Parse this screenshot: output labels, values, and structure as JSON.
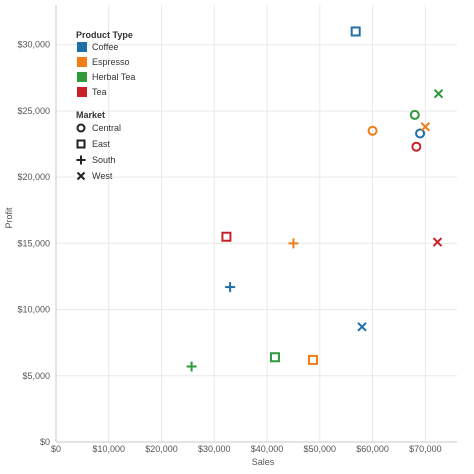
{
  "chart_data": {
    "type": "scatter",
    "xlabel": "Sales",
    "ylabel": "Profit",
    "xlim": [
      0,
      76000
    ],
    "ylim": [
      0,
      33000
    ],
    "x_ticks": [
      {
        "value": 0,
        "label": "$0"
      },
      {
        "value": 10000,
        "label": "$10,000"
      },
      {
        "value": 20000,
        "label": "$20,000"
      },
      {
        "value": 30000,
        "label": "$30,000"
      },
      {
        "value": 40000,
        "label": "$40,000"
      },
      {
        "value": 50000,
        "label": "$50,000"
      },
      {
        "value": 60000,
        "label": "$60,000"
      },
      {
        "value": 70000,
        "label": "$70,000"
      }
    ],
    "y_ticks": [
      {
        "value": 0,
        "label": "$0"
      },
      {
        "value": 5000,
        "label": "$5,000"
      },
      {
        "value": 10000,
        "label": "$10,000"
      },
      {
        "value": 15000,
        "label": "$15,000"
      },
      {
        "value": 20000,
        "label": "$20,000"
      },
      {
        "value": 25000,
        "label": "$25,000"
      },
      {
        "value": 30000,
        "label": "$30,000"
      }
    ],
    "grid": true,
    "legend_position": "top-left",
    "legend_color_title": "Product Type",
    "legend_shape_title": "Market",
    "product_types": [
      {
        "name": "Coffee",
        "color": "#1f6fa8"
      },
      {
        "name": "Espresso",
        "color": "#f07d1a"
      },
      {
        "name": "Herbal Tea",
        "color": "#2f9a3a"
      },
      {
        "name": "Tea",
        "color": "#c8202a"
      }
    ],
    "markets": [
      {
        "name": "Central",
        "shape": "circle"
      },
      {
        "name": "East",
        "shape": "square"
      },
      {
        "name": "South",
        "shape": "plus"
      },
      {
        "name": "West",
        "shape": "cross"
      }
    ],
    "points": [
      {
        "product": "Coffee",
        "market": "Central",
        "x": 69000,
        "y": 23300
      },
      {
        "product": "Coffee",
        "market": "East",
        "x": 56800,
        "y": 31000
      },
      {
        "product": "Coffee",
        "market": "South",
        "x": 33000,
        "y": 11700
      },
      {
        "product": "Coffee",
        "market": "West",
        "x": 58000,
        "y": 8700
      },
      {
        "product": "Espresso",
        "market": "Central",
        "x": 60000,
        "y": 23500
      },
      {
        "product": "Espresso",
        "market": "East",
        "x": 48700,
        "y": 6200
      },
      {
        "product": "Espresso",
        "market": "South",
        "x": 45000,
        "y": 15000
      },
      {
        "product": "Espresso",
        "market": "West",
        "x": 70000,
        "y": 23800
      },
      {
        "product": "Herbal Tea",
        "market": "Central",
        "x": 68000,
        "y": 24700
      },
      {
        "product": "Herbal Tea",
        "market": "East",
        "x": 41500,
        "y": 6400
      },
      {
        "product": "Herbal Tea",
        "market": "South",
        "x": 25700,
        "y": 5700
      },
      {
        "product": "Herbal Tea",
        "market": "West",
        "x": 72500,
        "y": 26300
      },
      {
        "product": "Tea",
        "market": "Central",
        "x": 68300,
        "y": 22300
      },
      {
        "product": "Tea",
        "market": "East",
        "x": 32300,
        "y": 15500
      },
      {
        "product": "Tea",
        "market": "West",
        "x": 72300,
        "y": 15100
      }
    ]
  }
}
